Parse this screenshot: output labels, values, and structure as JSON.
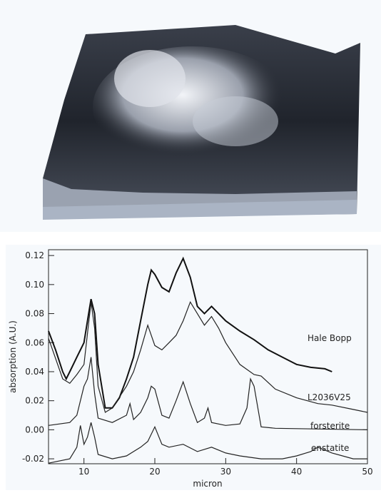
{
  "chart_data": {
    "type": "line",
    "x_label": "micron",
    "y_label": "absorption (A.U.)",
    "xlim": [
      5,
      50
    ],
    "xticks": [
      10,
      20,
      30,
      40,
      50
    ],
    "ylim": [
      -0.0234,
      0.124
    ],
    "yticks": [
      {
        "value": -0.02,
        "label": "-0.02"
      },
      {
        "value": 0,
        "label": "0.00"
      },
      0.02,
      0.04,
      0.06,
      0.08,
      {
        "value": 0.1,
        "label": "0.10"
      },
      0.12
    ],
    "series": [
      {
        "name": "Hale Bopp",
        "color": "#111111",
        "x": [
          5,
          6,
          7,
          7.5,
          8,
          9,
          10,
          10.5,
          11,
          11.5,
          12,
          13,
          14,
          15,
          16,
          17,
          18,
          19,
          19.5,
          20,
          21,
          22,
          23,
          24,
          25,
          26,
          27,
          28,
          30,
          32,
          34,
          36,
          38,
          40,
          42,
          44,
          45
        ],
        "values": [
          0.068,
          0.055,
          0.04,
          0.035,
          0.04,
          0.05,
          0.06,
          0.075,
          0.09,
          0.08,
          0.045,
          0.015,
          0.015,
          0.022,
          0.035,
          0.05,
          0.075,
          0.1,
          0.11,
          0.107,
          0.098,
          0.095,
          0.108,
          0.118,
          0.105,
          0.085,
          0.08,
          0.085,
          0.075,
          0.068,
          0.062,
          0.055,
          0.05,
          0.045,
          0.043,
          0.042,
          0.04
        ]
      },
      {
        "name": "L2036V25",
        "color": "#222222",
        "x": [
          5,
          7,
          8,
          9,
          10,
          11,
          11.5,
          12,
          13,
          14,
          16,
          17,
          18,
          19,
          20,
          21,
          22,
          23,
          24,
          25,
          26,
          27,
          28,
          29,
          30,
          32,
          34,
          35,
          37,
          40,
          43,
          45,
          48,
          50
        ],
        "values": [
          0.063,
          0.035,
          0.032,
          0.038,
          0.045,
          0.088,
          0.07,
          0.03,
          0.012,
          0.015,
          0.03,
          0.04,
          0.055,
          0.072,
          0.058,
          0.055,
          0.06,
          0.065,
          0.075,
          0.088,
          0.08,
          0.072,
          0.078,
          0.07,
          0.06,
          0.045,
          0.038,
          0.037,
          0.028,
          0.022,
          0.018,
          0.017,
          0.014,
          0.012
        ]
      },
      {
        "name": "forsterite",
        "color": "#222222",
        "x": [
          5,
          8,
          9,
          10,
          10.5,
          11,
          11.5,
          12,
          14,
          16,
          16.5,
          17,
          18,
          19,
          19.5,
          20,
          21,
          22,
          23,
          24,
          25,
          26,
          27,
          27.5,
          28,
          30,
          32,
          33,
          33.5,
          34,
          35,
          37,
          50
        ],
        "values": [
          0.003,
          0.005,
          0.01,
          0.03,
          0.035,
          0.05,
          0.025,
          0.008,
          0.005,
          0.01,
          0.018,
          0.007,
          0.012,
          0.022,
          0.03,
          0.028,
          0.01,
          0.008,
          0.02,
          0.033,
          0.018,
          0.005,
          0.008,
          0.015,
          0.005,
          0.003,
          0.004,
          0.015,
          0.035,
          0.03,
          0.002,
          0.001,
          0
        ]
      },
      {
        "name": "enstatite",
        "color": "#222222",
        "x": [
          5,
          8,
          9,
          9.5,
          10,
          10.5,
          11,
          11.5,
          12,
          14,
          16,
          18,
          19,
          20,
          21,
          22,
          24,
          26,
          28,
          30,
          32,
          35,
          38,
          40,
          42,
          43,
          45,
          48,
          50
        ],
        "values": [
          -0.023,
          -0.02,
          -0.012,
          0.003,
          -0.01,
          -0.005,
          0.005,
          -0.005,
          -0.017,
          -0.02,
          -0.018,
          -0.012,
          -0.008,
          0.002,
          -0.01,
          -0.012,
          -0.01,
          -0.015,
          -0.012,
          -0.016,
          -0.018,
          -0.02,
          -0.02,
          -0.018,
          -0.015,
          -0.012,
          -0.016,
          -0.02,
          -0.02
        ]
      }
    ]
  }
}
